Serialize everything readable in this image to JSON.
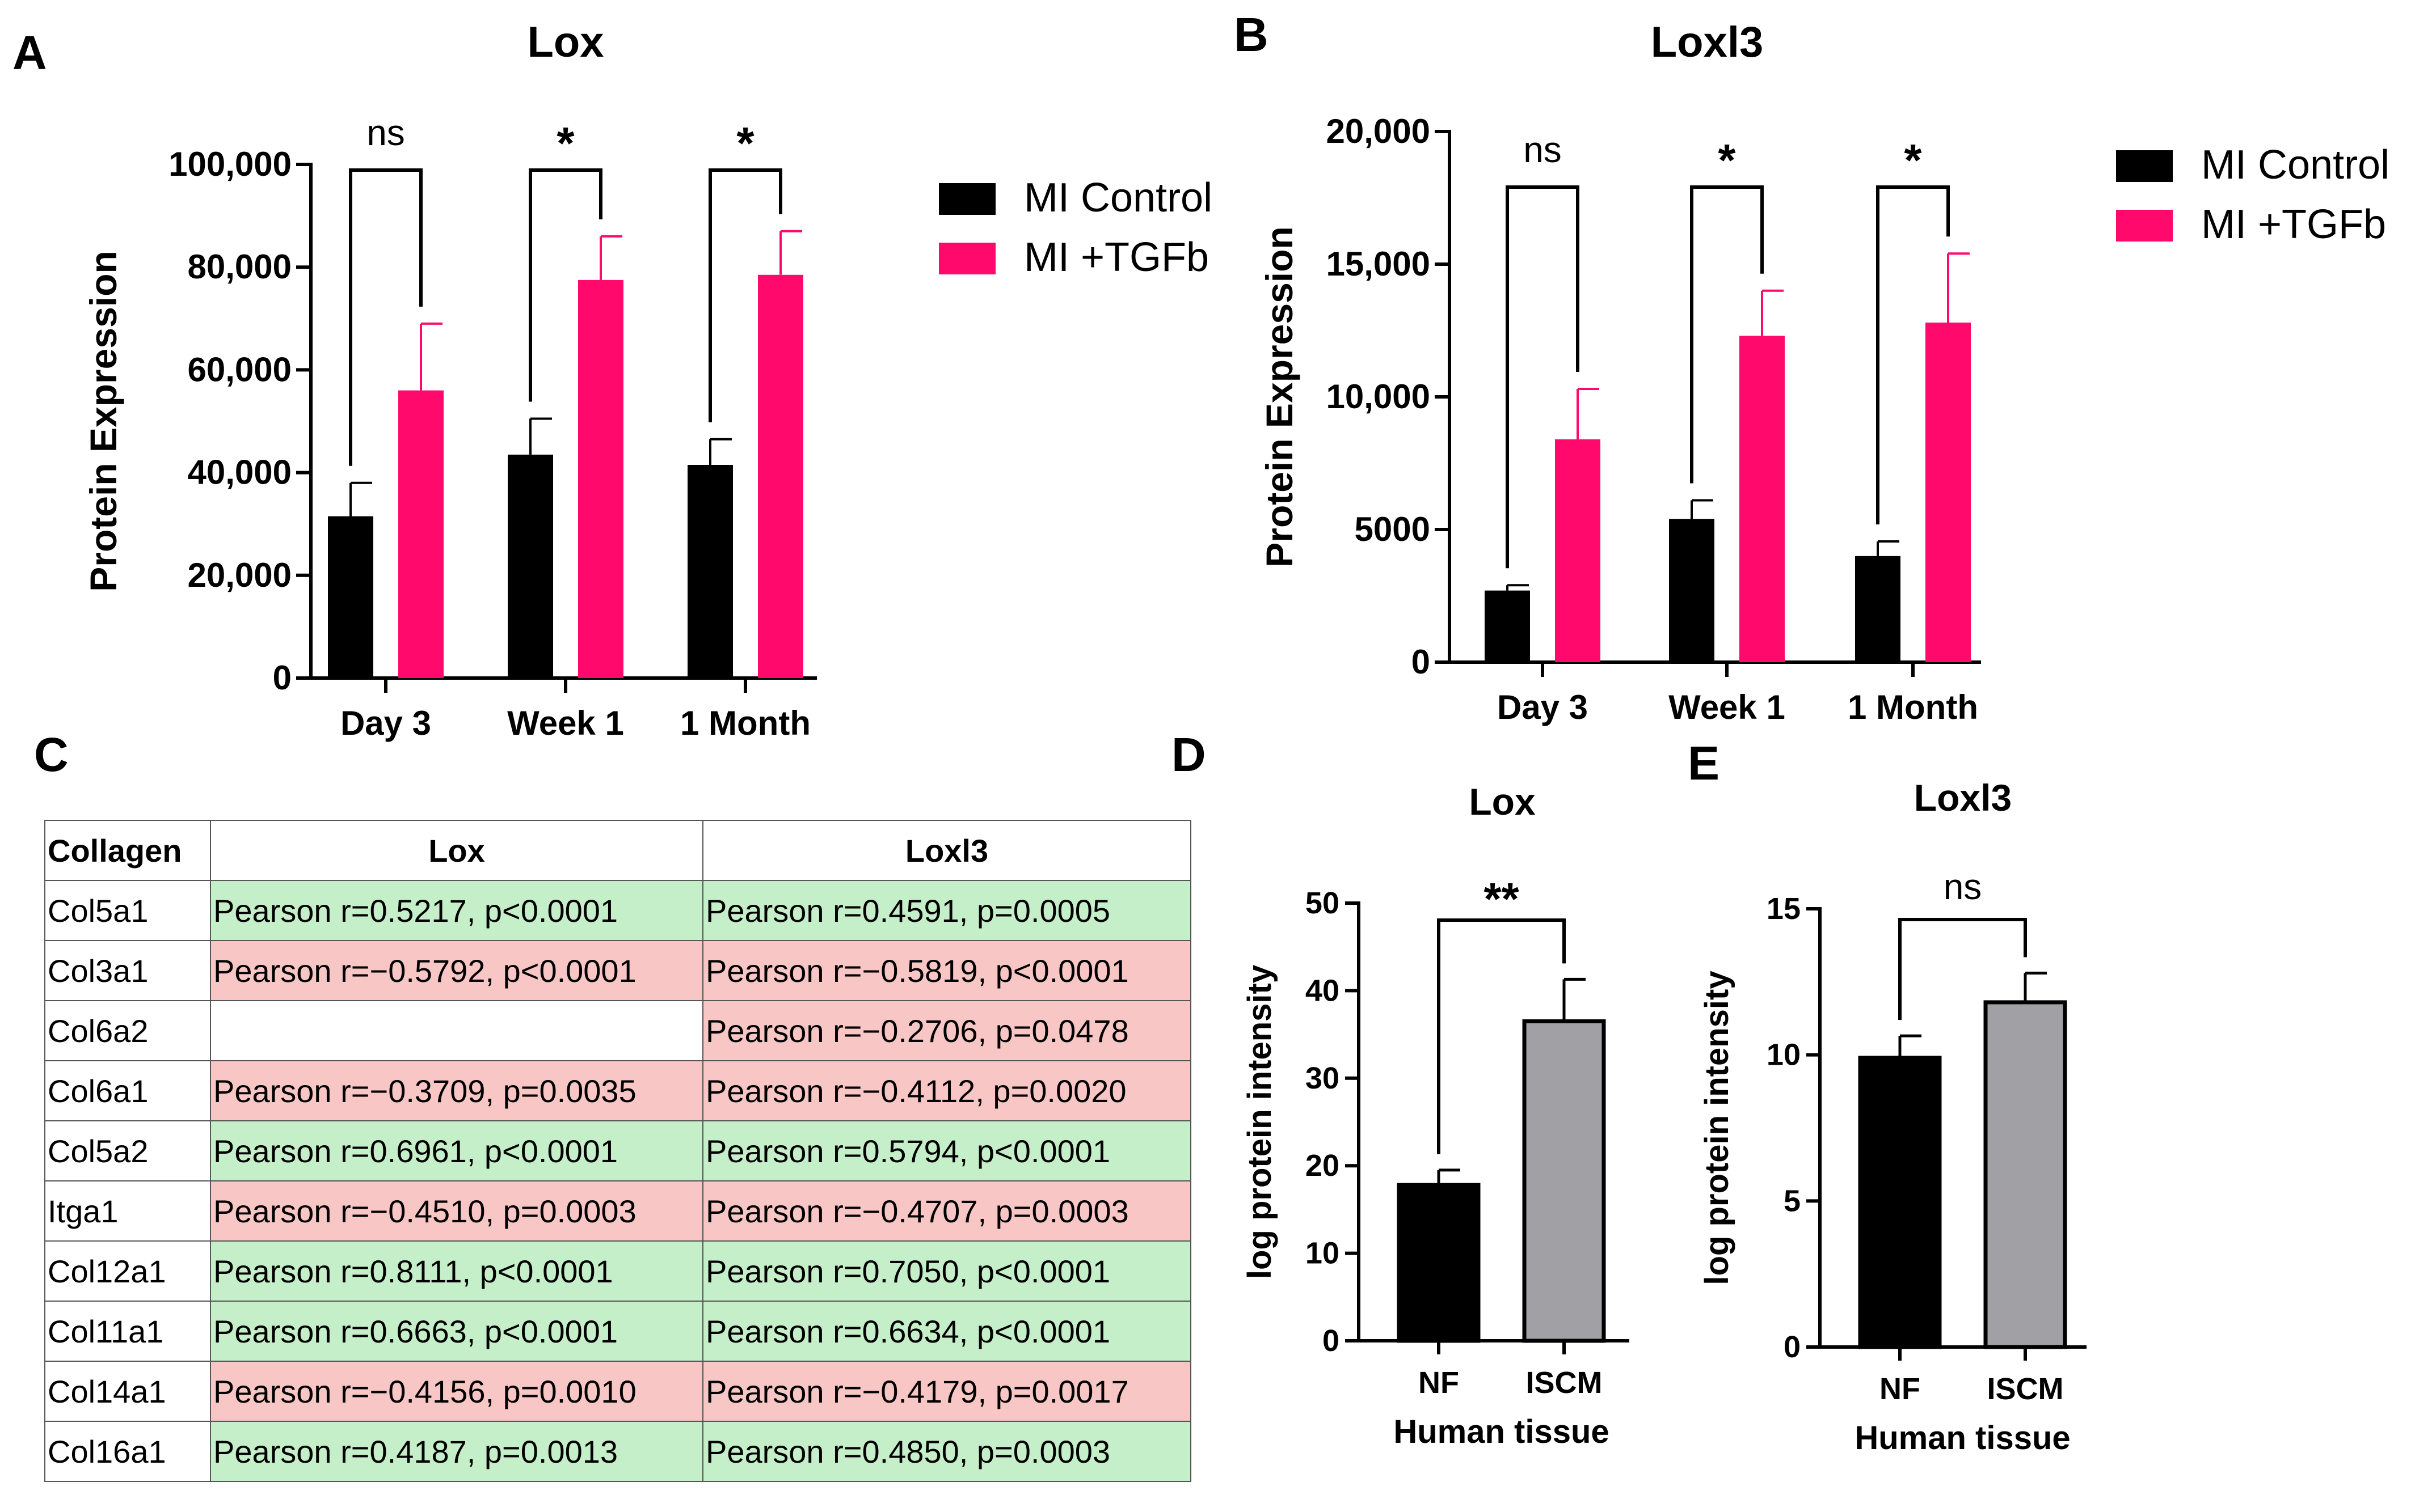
{
  "panels": {
    "a_letter": "A",
    "b_letter": "B",
    "c_letter": "C",
    "d_letter": "D",
    "e_letter": "E"
  },
  "colors": {
    "control": "#000000",
    "tgfb": "#ff0a6c",
    "nf": "#000000",
    "iscm": "#a0a0a5",
    "pos_cell": "#c5efc8",
    "neg_cell": "#f7c6c5"
  },
  "chart_data": [
    {
      "id": "A",
      "type": "bar",
      "title": "Lox",
      "ylabel": "Protein Expression",
      "xlabel": "",
      "ylim": [
        0,
        100000
      ],
      "yticks": [
        0,
        20000,
        40000,
        60000,
        80000,
        100000
      ],
      "ytick_labels": [
        "0",
        "20,000",
        "40,000",
        "60,000",
        "80,000",
        "100,000"
      ],
      "categories": [
        "Day 3",
        "Week 1",
        "1 Month"
      ],
      "series": [
        {
          "name": "MI Control",
          "values": [
            31500,
            43500,
            41500
          ],
          "errors": [
            6500,
            7000,
            5000
          ]
        },
        {
          "name": "MI +TGFb",
          "values": [
            56000,
            77500,
            78500
          ],
          "errors": [
            13000,
            8500,
            8500
          ]
        }
      ],
      "significance": [
        "ns",
        "*",
        "*"
      ],
      "legend": {
        "placement": "right",
        "entries": [
          "MI Control",
          "MI +TGFb"
        ]
      }
    },
    {
      "id": "B",
      "type": "bar",
      "title": "Loxl3",
      "ylabel": "Protein Expression",
      "xlabel": "",
      "ylim": [
        0,
        20000
      ],
      "yticks": [
        0,
        5000,
        10000,
        15000,
        20000
      ],
      "ytick_labels": [
        "0",
        "5000",
        "10,000",
        "15,000",
        "20,000"
      ],
      "categories": [
        "Day 3",
        "Week 1",
        "1 Month"
      ],
      "series": [
        {
          "name": "MI Control",
          "values": [
            2700,
            5400,
            4000
          ],
          "errors": [
            200,
            700,
            550
          ]
        },
        {
          "name": "MI +TGFb",
          "values": [
            8400,
            12300,
            12800
          ],
          "errors": [
            1900,
            1700,
            2600
          ]
        }
      ],
      "significance": [
        "ns",
        "*",
        "*"
      ],
      "legend": {
        "placement": "right",
        "entries": [
          "MI Control",
          "MI +TGFb"
        ]
      }
    },
    {
      "id": "C",
      "type": "table",
      "columns": [
        "Collagen",
        "Lox",
        "Loxl3"
      ],
      "rows": [
        {
          "name": "Col5a1",
          "lox": "Pearson r=0.5217, p<0.0001",
          "lox_sign": "pos",
          "loxl3": "Pearson r=0.4591, p=0.0005",
          "loxl3_sign": "pos"
        },
        {
          "name": "Col3a1",
          "lox": "Pearson r=−0.5792, p<0.0001",
          "lox_sign": "neg",
          "loxl3": "Pearson r=−0.5819, p<0.0001",
          "loxl3_sign": "neg"
        },
        {
          "name": "Col6a2",
          "lox": "",
          "lox_sign": "none",
          "loxl3": "Pearson r=−0.2706, p=0.0478",
          "loxl3_sign": "neg"
        },
        {
          "name": "Col6a1",
          "lox": "Pearson r=−0.3709, p=0.0035",
          "lox_sign": "neg",
          "loxl3": "Pearson r=−0.4112, p=0.0020",
          "loxl3_sign": "neg"
        },
        {
          "name": "Col5a2",
          "lox": "Pearson r=0.6961, p<0.0001",
          "lox_sign": "pos",
          "loxl3": "Pearson r=0.5794, p<0.0001",
          "loxl3_sign": "pos"
        },
        {
          "name": "Itga1",
          "lox": "Pearson r=−0.4510, p=0.0003",
          "lox_sign": "neg",
          "loxl3": "Pearson r=−0.4707, p=0.0003",
          "loxl3_sign": "neg"
        },
        {
          "name": "Col12a1",
          "lox": "Pearson r=0.8111, p<0.0001",
          "lox_sign": "pos",
          "loxl3": "Pearson r=0.7050, p<0.0001",
          "loxl3_sign": "pos"
        },
        {
          "name": "Col11a1",
          "lox": "Pearson r=0.6663, p<0.0001",
          "lox_sign": "pos",
          "loxl3": "Pearson r=0.6634, p<0.0001",
          "loxl3_sign": "pos"
        },
        {
          "name": "Col14a1",
          "lox": "Pearson r=−0.4156, p=0.0010",
          "lox_sign": "neg",
          "loxl3": "Pearson r=−0.4179, p=0.0017",
          "loxl3_sign": "neg"
        },
        {
          "name": "Col16a1",
          "lox": "Pearson r=0.4187, p=0.0013",
          "lox_sign": "pos",
          "loxl3": "Pearson r=0.4850, p=0.0003",
          "loxl3_sign": "pos"
        }
      ]
    },
    {
      "id": "D",
      "type": "bar",
      "title": "Lox",
      "ylabel": "log protein intensity",
      "xlabel": "Human tissue",
      "ylim": [
        0,
        50
      ],
      "yticks": [
        0,
        10,
        20,
        30,
        40,
        50
      ],
      "ytick_labels": [
        "0",
        "10",
        "20",
        "30",
        "40",
        "50"
      ],
      "categories": [
        "NF",
        "ISCM"
      ],
      "values": [
        17.8,
        36.5
      ],
      "errors": [
        1.7,
        4.8
      ],
      "significance": "**"
    },
    {
      "id": "E",
      "type": "bar",
      "title": "Loxl3",
      "ylabel": "log protein intensity",
      "xlabel": "Human tissue",
      "ylim": [
        0,
        15
      ],
      "yticks": [
        0,
        5,
        10,
        15
      ],
      "ytick_labels": [
        "0",
        "5",
        "10",
        "15"
      ],
      "categories": [
        "NF",
        "ISCM"
      ],
      "values": [
        9.9,
        11.8
      ],
      "errors": [
        0.75,
        1.0
      ],
      "significance": "ns"
    }
  ]
}
